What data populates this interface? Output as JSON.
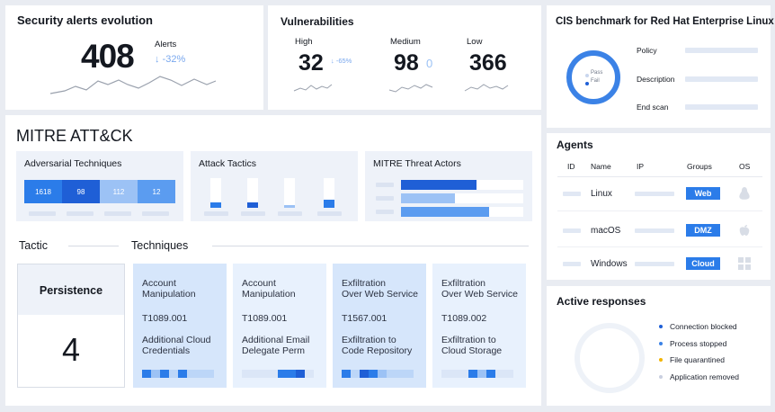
{
  "security_alerts": {
    "title": "Security alerts evolution",
    "count": "408",
    "label": "Alerts",
    "delta": "↓ -32%"
  },
  "vulnerabilities": {
    "title": "Vulnerabilities",
    "high": {
      "label": "High",
      "value": "32",
      "delta": "↓ -65%"
    },
    "medium": {
      "label": "Medium",
      "value": "98",
      "delta": "0"
    },
    "low": {
      "label": "Low",
      "value": "366"
    }
  },
  "cis": {
    "title": "CIS benchmark for Red Hat Enterprise Linux",
    "legend_pass": "Pass",
    "legend_fail": "Fail",
    "rows": [
      "Policy",
      "Description",
      "End scan"
    ]
  },
  "mitre": {
    "title": "MITRE ATT&CK",
    "adversarial_title": "Adversarial Techniques",
    "adversarial_values": [
      "1618",
      "98",
      "112",
      "12"
    ],
    "tactics_title": "Attack Tactics",
    "threat_title": "MITRE Threat Actors",
    "tactic_header": "Tactic",
    "techniques_header": "Techniques",
    "tactic_name": "Persistence",
    "tactic_count": "4",
    "techniques": [
      {
        "name": "Account\nManipulation",
        "id": "T1089.001",
        "sub": "Additional Cloud\nCredentials"
      },
      {
        "name": "Account\nManipulation",
        "id": "T1089.001",
        "sub": "Additional Email\nDelegate Perm"
      },
      {
        "name": "Exfiltration\nOver Web Service",
        "id": "T1567.001",
        "sub": "Exfiltration to\nCode Repository"
      },
      {
        "name": "Exfiltration\nOver Web Service",
        "id": "T1089.002",
        "sub": "Exfiltration to\nCloud Storage"
      }
    ]
  },
  "agents": {
    "title": "Agents",
    "columns": [
      "ID",
      "Name",
      "IP",
      "Groups",
      "OS"
    ],
    "rows": [
      {
        "name": "Linux",
        "group": "Web"
      },
      {
        "name": "macOS",
        "group": "DMZ"
      },
      {
        "name": "Windows",
        "group": "Cloud"
      }
    ]
  },
  "active_responses": {
    "title": "Active responses",
    "items": [
      {
        "label": "Connection blocked",
        "color": "#1f5fd6"
      },
      {
        "label": "Process stopped",
        "color": "#3b82e6"
      },
      {
        "label": "File quarantined",
        "color": "#f2b400"
      },
      {
        "label": "Application removed",
        "color": "#c9cfe0"
      }
    ]
  },
  "colors": {
    "accent": "#2b7ce9",
    "dark_blue": "#1f5fd6",
    "light_blue": "#9cc2f5"
  }
}
